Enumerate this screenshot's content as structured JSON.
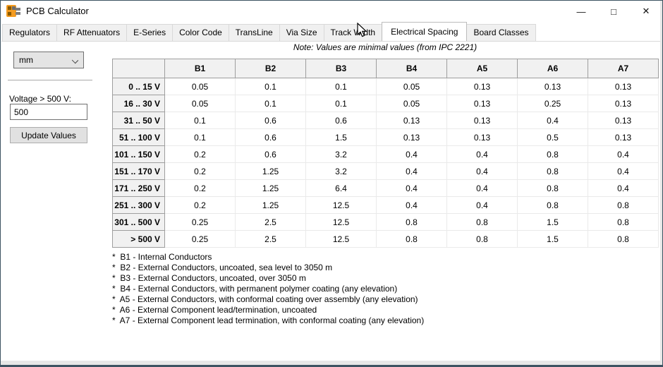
{
  "window": {
    "title": "PCB Calculator",
    "controls": {
      "minimize": "—",
      "maximize": "□",
      "close": "✕"
    }
  },
  "tabs": [
    {
      "label": "Regulators",
      "selected": false
    },
    {
      "label": "RF Attenuators",
      "selected": false
    },
    {
      "label": "E-Series",
      "selected": false
    },
    {
      "label": "Color Code",
      "selected": false
    },
    {
      "label": "TransLine",
      "selected": false
    },
    {
      "label": "Via Size",
      "selected": false
    },
    {
      "label": "Track Width",
      "selected": false
    },
    {
      "label": "Electrical Spacing",
      "selected": true
    },
    {
      "label": "Board Classes",
      "selected": false
    }
  ],
  "note": "Note: Values are minimal values (from IPC 2221)",
  "left_panel": {
    "unit_value": "mm",
    "voltage_label": "Voltage > 500 V:",
    "voltage_value": "500",
    "update_button_label": "Update Values"
  },
  "chart_data": {
    "type": "table",
    "columns": [
      "B1",
      "B2",
      "B3",
      "B4",
      "A5",
      "A6",
      "A7"
    ],
    "rows": [
      {
        "range": "0 .. 15 V",
        "values": [
          "0.05",
          "0.1",
          "0.1",
          "0.05",
          "0.13",
          "0.13",
          "0.13"
        ]
      },
      {
        "range": "16 .. 30 V",
        "values": [
          "0.05",
          "0.1",
          "0.1",
          "0.05",
          "0.13",
          "0.25",
          "0.13"
        ]
      },
      {
        "range": "31 .. 50 V",
        "values": [
          "0.1",
          "0.6",
          "0.6",
          "0.13",
          "0.13",
          "0.4",
          "0.13"
        ]
      },
      {
        "range": "51 .. 100 V",
        "values": [
          "0.1",
          "0.6",
          "1.5",
          "0.13",
          "0.13",
          "0.5",
          "0.13"
        ]
      },
      {
        "range": "101 .. 150 V",
        "values": [
          "0.2",
          "0.6",
          "3.2",
          "0.4",
          "0.4",
          "0.8",
          "0.4"
        ]
      },
      {
        "range": "151 .. 170 V",
        "values": [
          "0.2",
          "1.25",
          "3.2",
          "0.4",
          "0.4",
          "0.8",
          "0.4"
        ]
      },
      {
        "range": "171 .. 250 V",
        "values": [
          "0.2",
          "1.25",
          "6.4",
          "0.4",
          "0.4",
          "0.8",
          "0.4"
        ]
      },
      {
        "range": "251 .. 300 V",
        "values": [
          "0.2",
          "1.25",
          "12.5",
          "0.4",
          "0.4",
          "0.8",
          "0.8"
        ]
      },
      {
        "range": "301 .. 500 V",
        "values": [
          "0.25",
          "2.5",
          "12.5",
          "0.8",
          "0.8",
          "1.5",
          "0.8"
        ]
      },
      {
        "range": "> 500 V",
        "values": [
          "0.25",
          "2.5",
          "12.5",
          "0.8",
          "0.8",
          "1.5",
          "0.8"
        ]
      }
    ]
  },
  "footnotes": [
    "*  B1 - Internal Conductors",
    "*  B2 - External Conductors, uncoated, sea level to 3050 m",
    "*  B3 - External Conductors, uncoated, over 3050 m",
    "*  B4 - External Conductors, with permanent polymer coating (any elevation)",
    "*  A5 - External Conductors, with conformal coating over assembly (any elevation)",
    "*  A6 - External Component lead/termination, uncoated",
    "*  A7 - External Component lead termination, with conformal coating (any elevation)"
  ],
  "colors": {
    "window_border": "#3d5362",
    "header_cell_bg": "#f1f1f1",
    "icon_orange": "#f49b1f"
  }
}
